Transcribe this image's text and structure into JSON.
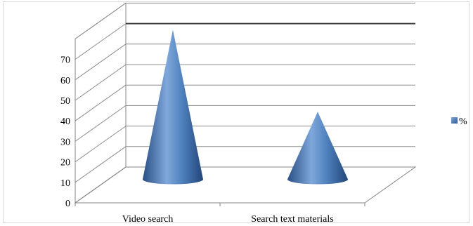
{
  "chart_data": {
    "type": "bar",
    "style": "3d-cone",
    "categories": [
      "Video search",
      "Search text materials"
    ],
    "series": [
      {
        "name": "%",
        "values": [
          73,
          33
        ]
      }
    ],
    "ylim": [
      0,
      70
    ],
    "yticks": [
      0,
      10,
      20,
      30,
      40,
      50,
      60,
      70
    ],
    "grid": true,
    "legend_position": "right",
    "series_color": "#4f81bd"
  }
}
